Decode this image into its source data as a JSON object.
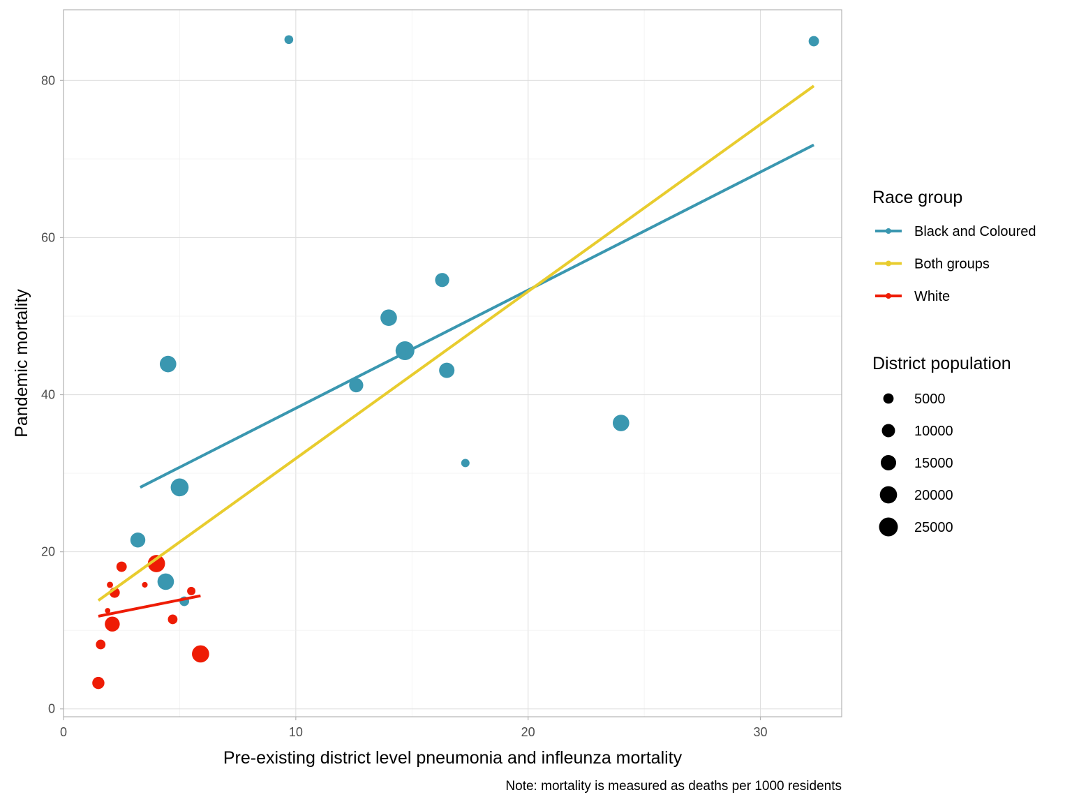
{
  "chart_data": {
    "type": "scatter",
    "title": "",
    "xlabel": "Pre-existing district level pneumonia and infleunza mortality",
    "ylabel": "Pandemic mortality",
    "caption": "Note: mortality is measured as deaths per 1000 residents",
    "xlim": [
      0,
      33.5
    ],
    "ylim": [
      -1,
      89
    ],
    "x_ticks": [
      0,
      10,
      20,
      30
    ],
    "y_ticks": [
      0,
      20,
      40,
      60,
      80
    ],
    "grid": true,
    "legend_placement": "right",
    "colors": {
      "Black and Coloured": "#3a97b0",
      "Both groups": "#e8cc2e",
      "White": "#ee1c05"
    },
    "legend_color": {
      "title": "Race group",
      "entries": [
        "Black and Coloured",
        "Both groups",
        "White"
      ]
    },
    "legend_size": {
      "title": "District population",
      "entries": [
        {
          "label": "5000",
          "value": 5000
        },
        {
          "label": "10000",
          "value": 10000
        },
        {
          "label": "15000",
          "value": 15000
        },
        {
          "label": "20000",
          "value": 20000
        },
        {
          "label": "25000",
          "value": 25000
        }
      ]
    },
    "points": [
      {
        "group": "Black and Coloured",
        "x": 9.7,
        "y": 85.2,
        "pop": 3000
      },
      {
        "group": "Black and Coloured",
        "x": 32.3,
        "y": 85.0,
        "pop": 5000
      },
      {
        "group": "Black and Coloured",
        "x": 16.3,
        "y": 54.6,
        "pop": 12000
      },
      {
        "group": "Black and Coloured",
        "x": 14.0,
        "y": 49.8,
        "pop": 18000
      },
      {
        "group": "Black and Coloured",
        "x": 14.7,
        "y": 45.6,
        "pop": 25000
      },
      {
        "group": "Black and Coloured",
        "x": 4.5,
        "y": 43.9,
        "pop": 18000
      },
      {
        "group": "Black and Coloured",
        "x": 16.5,
        "y": 43.1,
        "pop": 15000
      },
      {
        "group": "Black and Coloured",
        "x": 12.6,
        "y": 41.2,
        "pop": 12000
      },
      {
        "group": "Black and Coloured",
        "x": 24.0,
        "y": 36.4,
        "pop": 18000
      },
      {
        "group": "Black and Coloured",
        "x": 17.3,
        "y": 31.3,
        "pop": 2500
      },
      {
        "group": "Black and Coloured",
        "x": 5.0,
        "y": 28.2,
        "pop": 22000
      },
      {
        "group": "Black and Coloured",
        "x": 3.2,
        "y": 21.5,
        "pop": 14000
      },
      {
        "group": "Black and Coloured",
        "x": 4.4,
        "y": 16.2,
        "pop": 18000
      },
      {
        "group": "Black and Coloured",
        "x": 5.2,
        "y": 13.7,
        "pop": 4000
      },
      {
        "group": "White",
        "x": 4.0,
        "y": 18.5,
        "pop": 20000
      },
      {
        "group": "White",
        "x": 2.5,
        "y": 18.1,
        "pop": 5000
      },
      {
        "group": "White",
        "x": 2.0,
        "y": 15.8,
        "pop": 800
      },
      {
        "group": "White",
        "x": 3.5,
        "y": 15.8,
        "pop": 500
      },
      {
        "group": "White",
        "x": 2.2,
        "y": 14.8,
        "pop": 5000
      },
      {
        "group": "White",
        "x": 5.5,
        "y": 15.0,
        "pop": 2500
      },
      {
        "group": "White",
        "x": 1.9,
        "y": 12.5,
        "pop": 400
      },
      {
        "group": "White",
        "x": 2.1,
        "y": 10.8,
        "pop": 14000
      },
      {
        "group": "White",
        "x": 4.7,
        "y": 11.4,
        "pop": 4000
      },
      {
        "group": "White",
        "x": 1.6,
        "y": 8.2,
        "pop": 4000
      },
      {
        "group": "White",
        "x": 5.9,
        "y": 7.0,
        "pop": 20000
      },
      {
        "group": "White",
        "x": 1.5,
        "y": 3.3,
        "pop": 8000
      }
    ],
    "fit_lines": [
      {
        "group": "Black and Coloured",
        "x": [
          3.3,
          32.3
        ],
        "y": [
          28.2,
          71.8
        ]
      },
      {
        "group": "Both groups",
        "x": [
          1.5,
          32.3
        ],
        "y": [
          13.8,
          79.3
        ]
      },
      {
        "group": "White",
        "x": [
          1.5,
          5.9
        ],
        "y": [
          11.8,
          14.4
        ]
      }
    ]
  }
}
